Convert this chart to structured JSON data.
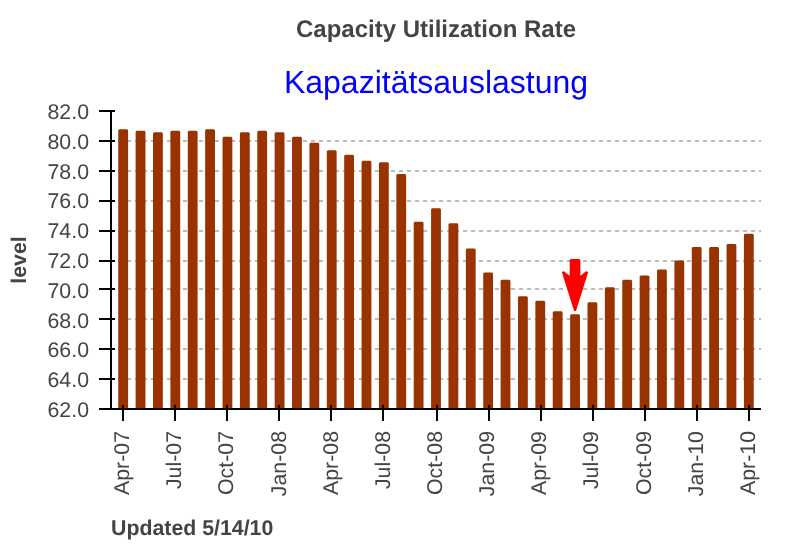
{
  "chart_data": {
    "type": "bar",
    "title": "Capacity Utilization Rate",
    "subtitle": "Kapazitätsauslastung",
    "ylabel": "level",
    "categories": [
      "Apr-07",
      null,
      null,
      "Jul-07",
      null,
      null,
      "Oct-07",
      null,
      null,
      "Jan-08",
      null,
      null,
      "Apr-08",
      null,
      null,
      "Jul-08",
      null,
      null,
      "Oct-08",
      null,
      null,
      "Jan-09",
      null,
      null,
      "Apr-09",
      null,
      null,
      "Jul-09",
      null,
      null,
      "Oct-09",
      null,
      null,
      "Jan-10",
      null,
      null,
      "Apr-10"
    ],
    "values": [
      80.7,
      80.6,
      80.5,
      80.6,
      80.6,
      80.7,
      80.2,
      80.5,
      80.6,
      80.5,
      80.2,
      79.8,
      79.3,
      79.0,
      78.6,
      78.5,
      77.7,
      74.5,
      75.4,
      74.4,
      72.7,
      71.1,
      70.6,
      69.5,
      69.2,
      68.5,
      68.3,
      69.1,
      70.1,
      70.6,
      70.9,
      71.3,
      71.9,
      72.8,
      72.8,
      73.0,
      73.7
    ],
    "color": "#993300",
    "ylim": [
      62,
      82
    ],
    "yticks": [
      {
        "value": 62,
        "label": "62.0"
      },
      {
        "value": 64,
        "label": "64.0"
      },
      {
        "value": 66,
        "label": "66.0"
      },
      {
        "value": 68,
        "label": "68.0"
      },
      {
        "value": 70,
        "label": "70.0"
      },
      {
        "value": 72,
        "label": "72.0"
      },
      {
        "value": 74,
        "label": "74.0"
      },
      {
        "value": 76,
        "label": "76.0"
      },
      {
        "value": 78,
        "label": "78.0"
      },
      {
        "value": 80,
        "label": "80.0"
      },
      {
        "value": 82,
        "label": "82.0"
      }
    ],
    "grid": "y",
    "annotations": [
      "Updated 5/14/10"
    ]
  }
}
